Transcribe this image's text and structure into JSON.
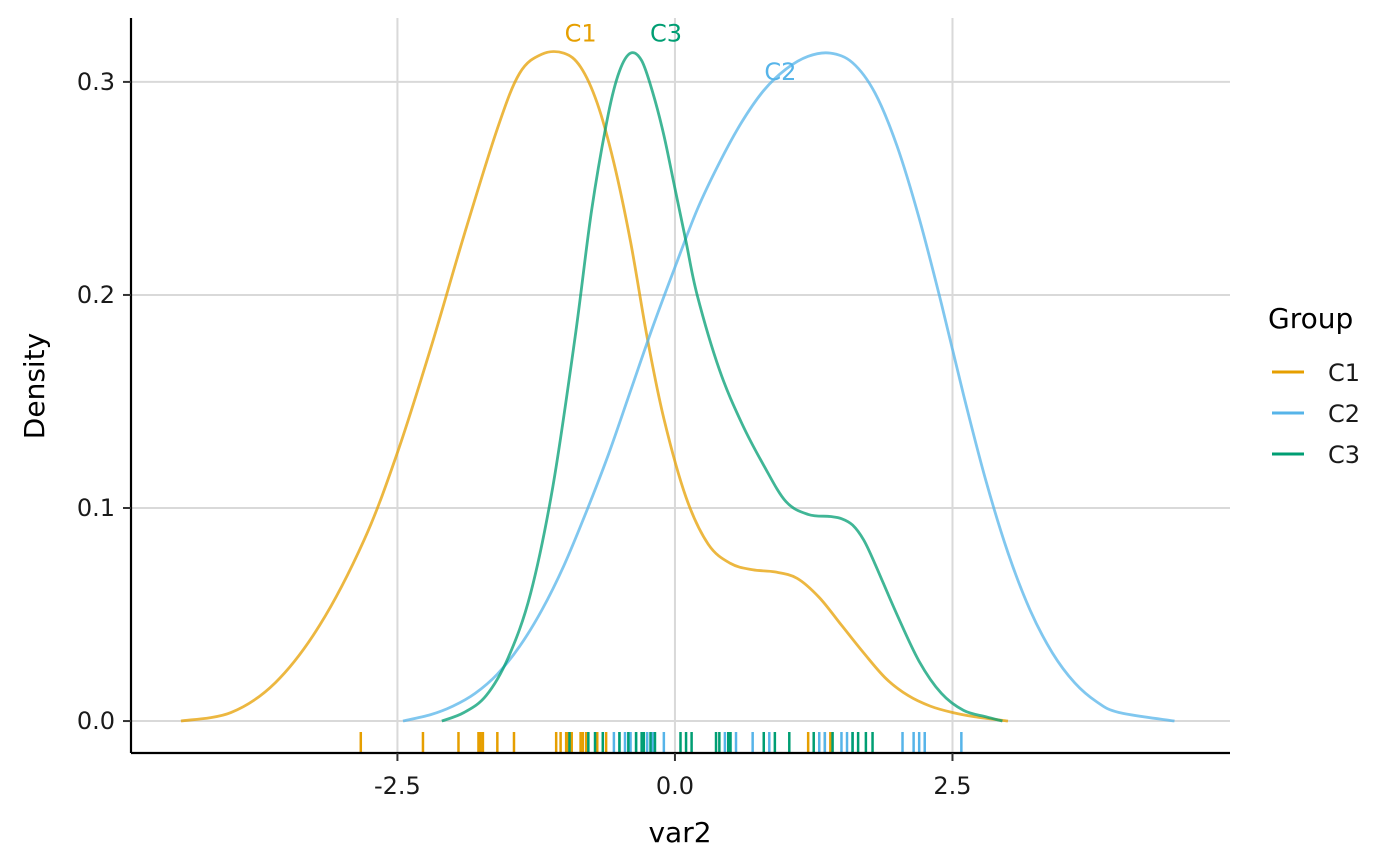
{
  "chart_data": {
    "type": "line",
    "subtype": "density with rug",
    "xlabel": "var2",
    "ylabel": "Density",
    "xlim": [
      -4.9,
      5.0
    ],
    "ylim": [
      -0.015,
      0.33
    ],
    "x_ticks": [
      -2.5,
      0.0,
      2.5
    ],
    "x_tick_labels": [
      "-2.5",
      "0.0",
      "2.5"
    ],
    "y_ticks": [
      0.0,
      0.1,
      0.2,
      0.3
    ],
    "y_tick_labels": [
      "0.0",
      "0.1",
      "0.2",
      "0.3"
    ],
    "grid": true,
    "legend": {
      "title": "Group",
      "position": "right"
    },
    "series": [
      {
        "name": "C1",
        "color": "#E69F00",
        "label_x": -0.85,
        "label_y": 0.319,
        "x": [
          -4.45,
          -4.0,
          -3.6,
          -3.2,
          -2.8,
          -2.5,
          -2.2,
          -1.9,
          -1.6,
          -1.4,
          -1.2,
          -1.0,
          -0.85,
          -0.7,
          -0.55,
          -0.4,
          -0.25,
          -0.1,
          0.1,
          0.3,
          0.5,
          0.7,
          0.9,
          1.1,
          1.3,
          1.5,
          1.7,
          1.9,
          2.1,
          2.3,
          2.5,
          2.7,
          3.0
        ],
        "y": [
          0.0,
          0.004,
          0.018,
          0.045,
          0.085,
          0.126,
          0.175,
          0.228,
          0.278,
          0.304,
          0.313,
          0.3135,
          0.307,
          0.29,
          0.262,
          0.225,
          0.18,
          0.142,
          0.105,
          0.083,
          0.074,
          0.071,
          0.07,
          0.067,
          0.058,
          0.045,
          0.032,
          0.02,
          0.012,
          0.007,
          0.004,
          0.002,
          0.0
        ]
      },
      {
        "name": "C2",
        "color": "#56B4E9",
        "label_x": 0.95,
        "label_y": 0.301,
        "x": [
          -2.45,
          -2.2,
          -2.0,
          -1.8,
          -1.6,
          -1.4,
          -1.2,
          -1.0,
          -0.8,
          -0.6,
          -0.4,
          -0.2,
          0.0,
          0.2,
          0.4,
          0.6,
          0.8,
          1.0,
          1.2,
          1.4,
          1.6,
          1.8,
          2.0,
          2.2,
          2.4,
          2.6,
          2.8,
          3.0,
          3.2,
          3.4,
          3.6,
          3.8,
          4.0,
          4.5
        ],
        "y": [
          0.0,
          0.003,
          0.007,
          0.013,
          0.022,
          0.035,
          0.052,
          0.073,
          0.098,
          0.125,
          0.155,
          0.185,
          0.213,
          0.24,
          0.262,
          0.281,
          0.296,
          0.306,
          0.312,
          0.3135,
          0.309,
          0.295,
          0.27,
          0.236,
          0.196,
          0.153,
          0.113,
          0.079,
          0.052,
          0.032,
          0.018,
          0.009,
          0.004,
          0.0
        ]
      },
      {
        "name": "C3",
        "color": "#009E73",
        "label_x": -0.08,
        "label_y": 0.319,
        "x": [
          -2.1,
          -1.9,
          -1.7,
          -1.5,
          -1.3,
          -1.1,
          -0.9,
          -0.75,
          -0.6,
          -0.5,
          -0.4,
          -0.3,
          -0.2,
          -0.1,
          0.0,
          0.1,
          0.2,
          0.4,
          0.6,
          0.8,
          1.0,
          1.2,
          1.4,
          1.5,
          1.6,
          1.7,
          1.8,
          2.0,
          2.2,
          2.4,
          2.6,
          2.8,
          2.95
        ],
        "y": [
          0.0,
          0.004,
          0.012,
          0.03,
          0.06,
          0.11,
          0.18,
          0.24,
          0.285,
          0.305,
          0.3135,
          0.31,
          0.295,
          0.275,
          0.25,
          0.225,
          0.2,
          0.165,
          0.14,
          0.12,
          0.103,
          0.097,
          0.096,
          0.095,
          0.092,
          0.085,
          0.074,
          0.05,
          0.028,
          0.013,
          0.005,
          0.002,
          0.0
        ]
      }
    ],
    "rug": [
      {
        "group": "C1",
        "values": [
          -2.83,
          -2.27,
          -1.95,
          -1.77,
          -1.75,
          -1.73,
          -1.6,
          -1.45,
          -1.07,
          -1.03,
          -0.98,
          -0.96,
          -0.93,
          -0.85,
          -0.83,
          -0.8,
          -0.7,
          -0.62,
          1.2,
          1.3,
          1.35,
          1.4
        ]
      },
      {
        "group": "C2",
        "values": [
          -0.55,
          -0.5,
          -0.45,
          -0.4,
          -0.35,
          -0.25,
          -0.2,
          -0.1,
          0.45,
          0.5,
          0.55,
          0.7,
          0.85,
          1.3,
          1.35,
          1.5,
          1.55,
          1.6,
          2.05,
          2.15,
          2.2,
          2.25,
          2.58
        ]
      },
      {
        "group": "C3",
        "values": [
          -0.95,
          -0.78,
          -0.72,
          -0.65,
          -0.5,
          -0.42,
          -0.35,
          -0.3,
          -0.28,
          -0.22,
          -0.18,
          0.05,
          0.1,
          0.15,
          0.37,
          0.4,
          0.48,
          0.5,
          0.8,
          0.9,
          1.03,
          1.25,
          1.42,
          1.6,
          1.65,
          1.72,
          1.78
        ]
      }
    ]
  }
}
